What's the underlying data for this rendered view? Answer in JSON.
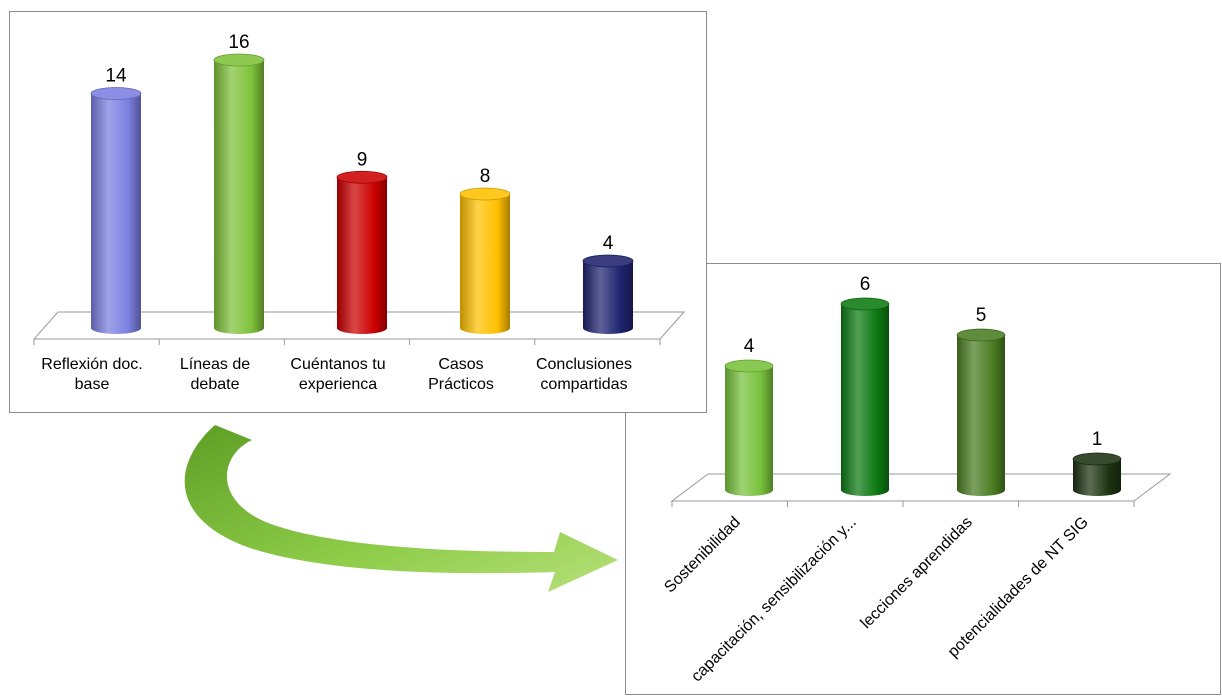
{
  "chart_data": [
    {
      "type": "bar",
      "style": "3d-cylinder",
      "categories": [
        "Reflexión doc. base",
        "Líneas de debate",
        "Cuéntanos tu experienca",
        "Casos Prácticos",
        "Conclusiones compartidas"
      ],
      "category_lines": [
        [
          "Reflexión doc.",
          "base"
        ],
        [
          "Líneas de",
          "debate"
        ],
        [
          "Cuéntanos tu",
          "experienca"
        ],
        [
          "Casos",
          "Prácticos"
        ],
        [
          "Conclusiones",
          "compartidas"
        ]
      ],
      "values": [
        14,
        16,
        9,
        8,
        4
      ],
      "data_labels": [
        "14",
        "16",
        "9",
        "8",
        "4"
      ],
      "colors": [
        "#7b7fe0",
        "#7fc23a",
        "#cc0000",
        "#ffc000",
        "#1f2470"
      ],
      "ylim": [
        0,
        16
      ],
      "grid": false,
      "legend": "none"
    },
    {
      "type": "bar",
      "style": "3d-cylinder",
      "categories": [
        "Sostenibilidad",
        "capacitación, sensibilización y...",
        "lecciones aprendidas",
        "potencialidades de NT SIG"
      ],
      "values": [
        4,
        6,
        5,
        1
      ],
      "data_labels": [
        "4",
        "6",
        "5",
        "1"
      ],
      "colors": [
        "#78c23c",
        "#0c7a12",
        "#4a7d22",
        "#1c3311"
      ],
      "ylim": [
        0,
        6
      ],
      "grid": false,
      "legend": "none"
    }
  ],
  "arrow": {
    "color": "#7dbb35",
    "direction": "from-chart-1-to-chart-2"
  }
}
